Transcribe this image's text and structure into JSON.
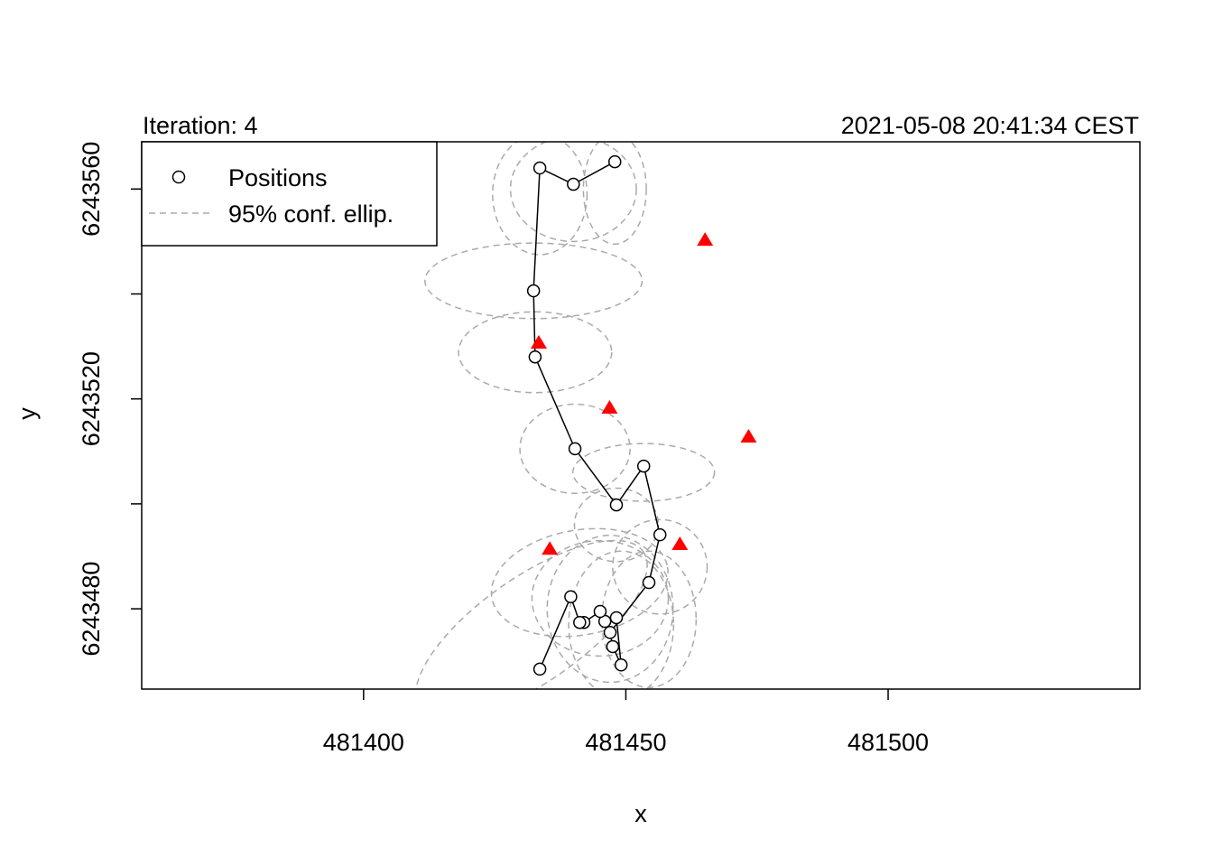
{
  "chart_data": {
    "type": "scatter",
    "title": "Iteration: 4",
    "subtitle": "2021-05-08 20:41:34 CEST",
    "x_label": "x",
    "y_label": "y",
    "xlim": [
      481357.7,
      481548
    ],
    "ylim": [
      6243464.7,
      6243569
    ],
    "xticks": [
      481400,
      481450,
      481500
    ],
    "yticks": [
      6243480,
      6243520,
      6243560
    ],
    "yticks_unlabeled": [
      6243500,
      6243540
    ],
    "legend": "topleft",
    "series": [
      {
        "name": "Positions",
        "color": "#000000",
        "x": [
          481447.9,
          481440.0,
          481433.6,
          481432.4,
          481432.7,
          481440.3,
          481448.2,
          481453.4,
          481456.5,
          481454.4,
          481447.0,
          481447.5,
          481449.1,
          481448.2,
          481446.0,
          481445.1,
          481442.0,
          481441.2,
          481439.5,
          481433.6
        ],
        "y": [
          6243565.2,
          6243560.9,
          6243564.0,
          6243540.6,
          6243528.0,
          6243510.5,
          6243499.8,
          6243507.2,
          6243494.1,
          6243485.0,
          6243475.5,
          6243472.8,
          6243469.3,
          6243478.3,
          6243477.6,
          6243479.5,
          6243477.4,
          6243477.4,
          6243482.3,
          6243468.5
        ]
      }
    ],
    "anchors": {
      "color": "#ff0000",
      "x": [
        481465.1,
        481433.4,
        481446.9,
        481473.4,
        481435.5,
        481460.3
      ],
      "y": [
        6243550.4,
        6243530.8,
        6243518.4,
        6243512.9,
        6243491.5,
        6243492.4
      ]
    },
    "ellipses": {
      "name": "95% conf. ellip.",
      "color": "#aaaaaa",
      "items": [
        {
          "cx": 481433.6,
          "cy": 6243559,
          "rx": 9,
          "ry": 11.5,
          "angle": 0
        },
        {
          "cx": 481440.0,
          "cy": 6243560,
          "rx": 12,
          "ry": 10,
          "angle": 0
        },
        {
          "cx": 481447.9,
          "cy": 6243560,
          "rx": 6,
          "ry": 10.5,
          "angle": 0
        },
        {
          "cx": 481432.4,
          "cy": 6243542.5,
          "rx": 20.7,
          "ry": 7.2,
          "angle": 0
        },
        {
          "cx": 481432.7,
          "cy": 6243528.9,
          "rx": 14.6,
          "ry": 7.7,
          "angle": 0
        },
        {
          "cx": 481440.3,
          "cy": 6243510.5,
          "rx": 10.5,
          "ry": 8.5,
          "angle": 0
        },
        {
          "cx": 481453.4,
          "cy": 6243506,
          "rx": 13.5,
          "ry": 5.5,
          "angle": 0
        },
        {
          "cx": 481448.2,
          "cy": 6243496,
          "rx": 8,
          "ry": 7,
          "angle": 0
        },
        {
          "cx": 481456.5,
          "cy": 6243488,
          "rx": 9,
          "ry": 9,
          "angle": 0
        },
        {
          "cx": 481447.0,
          "cy": 6243480,
          "rx": 12,
          "ry": 14,
          "angle": 0
        },
        {
          "cx": 481449.1,
          "cy": 6243477,
          "rx": 10,
          "ry": 14,
          "angle": 0
        },
        {
          "cx": 481445.1,
          "cy": 6243482,
          "rx": 13,
          "ry": 11,
          "angle": 0
        },
        {
          "cx": 481441.2,
          "cy": 6243485,
          "rx": 17,
          "ry": 10,
          "angle": -10
        },
        {
          "cx": 481432,
          "cy": 6243476,
          "rx": 26,
          "ry": 10,
          "angle": -35
        },
        {
          "cx": 481454.4,
          "cy": 6243478,
          "rx": 9,
          "ry": 13,
          "angle": 0
        }
      ]
    }
  }
}
